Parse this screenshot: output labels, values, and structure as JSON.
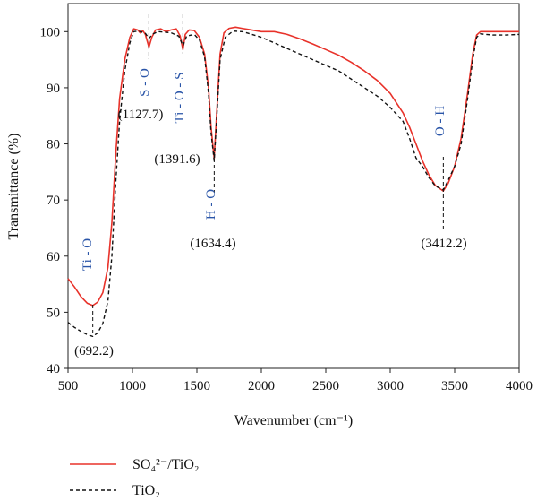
{
  "chart_data": {
    "type": "line",
    "xlabel": "Wavenumber (cm⁻¹)",
    "ylabel": "Transmittance (%)",
    "xlim": [
      500,
      4000
    ],
    "ylim": [
      40,
      105
    ],
    "x_ticks": [
      500,
      1000,
      1500,
      2000,
      2500,
      3000,
      3500,
      4000
    ],
    "y_ticks": [
      40,
      50,
      60,
      70,
      80,
      90,
      100
    ],
    "grid": false,
    "legend_position": "bottom-left",
    "series": [
      {
        "name": "SO₄²⁻/TiO₂",
        "color": "#e8322a",
        "dash": "solid",
        "points": [
          [
            500,
            56
          ],
          [
            550,
            54.5
          ],
          [
            600,
            52.8
          ],
          [
            650,
            51.6
          ],
          [
            692,
            51.2
          ],
          [
            730,
            51.8
          ],
          [
            770,
            53.5
          ],
          [
            810,
            58
          ],
          [
            840,
            66
          ],
          [
            870,
            78
          ],
          [
            900,
            88
          ],
          [
            940,
            95
          ],
          [
            980,
            99
          ],
          [
            1010,
            100.5
          ],
          [
            1040,
            100.3
          ],
          [
            1060,
            99.8
          ],
          [
            1080,
            100.2
          ],
          [
            1100,
            99.5
          ],
          [
            1128,
            97.2
          ],
          [
            1150,
            99
          ],
          [
            1180,
            100.3
          ],
          [
            1220,
            100.5
          ],
          [
            1260,
            100
          ],
          [
            1300,
            100.3
          ],
          [
            1340,
            100.5
          ],
          [
            1370,
            99.2
          ],
          [
            1392,
            96.8
          ],
          [
            1410,
            99.5
          ],
          [
            1440,
            100.3
          ],
          [
            1480,
            100.2
          ],
          [
            1520,
            99
          ],
          [
            1560,
            96
          ],
          [
            1590,
            90
          ],
          [
            1610,
            83
          ],
          [
            1634,
            77.4
          ],
          [
            1655,
            86
          ],
          [
            1680,
            96
          ],
          [
            1710,
            99.8
          ],
          [
            1750,
            100.6
          ],
          [
            1800,
            100.8
          ],
          [
            1850,
            100.6
          ],
          [
            1900,
            100.4
          ],
          [
            2000,
            100
          ],
          [
            2100,
            100
          ],
          [
            2200,
            99.5
          ],
          [
            2300,
            98.7
          ],
          [
            2400,
            97.8
          ],
          [
            2500,
            96.8
          ],
          [
            2600,
            95.8
          ],
          [
            2700,
            94.5
          ],
          [
            2800,
            93
          ],
          [
            2900,
            91.3
          ],
          [
            3000,
            89
          ],
          [
            3100,
            85.5
          ],
          [
            3150,
            83
          ],
          [
            3200,
            80
          ],
          [
            3250,
            77
          ],
          [
            3300,
            74.5
          ],
          [
            3350,
            72.6
          ],
          [
            3412,
            71.6
          ],
          [
            3450,
            73
          ],
          [
            3500,
            76
          ],
          [
            3550,
            81
          ],
          [
            3600,
            89
          ],
          [
            3640,
            96
          ],
          [
            3670,
            99.4
          ],
          [
            3700,
            100
          ],
          [
            3800,
            100
          ],
          [
            3900,
            100
          ],
          [
            4000,
            100
          ]
        ]
      },
      {
        "name": "TiO₂",
        "color": "#111111",
        "dash": "dashed",
        "points": [
          [
            500,
            48.2
          ],
          [
            550,
            47.3
          ],
          [
            600,
            46.6
          ],
          [
            650,
            46
          ],
          [
            692,
            45.7
          ],
          [
            730,
            46.3
          ],
          [
            770,
            48
          ],
          [
            810,
            52
          ],
          [
            840,
            60
          ],
          [
            870,
            73
          ],
          [
            900,
            84
          ],
          [
            940,
            93
          ],
          [
            980,
            98
          ],
          [
            1010,
            100
          ],
          [
            1050,
            100.1
          ],
          [
            1100,
            99.7
          ],
          [
            1128,
            98.8
          ],
          [
            1160,
            99.6
          ],
          [
            1200,
            100
          ],
          [
            1300,
            99.8
          ],
          [
            1360,
            99.2
          ],
          [
            1392,
            97.5
          ],
          [
            1420,
            99.2
          ],
          [
            1480,
            99.5
          ],
          [
            1520,
            98.5
          ],
          [
            1560,
            95.5
          ],
          [
            1590,
            89
          ],
          [
            1610,
            82
          ],
          [
            1634,
            77
          ],
          [
            1655,
            85
          ],
          [
            1680,
            95
          ],
          [
            1720,
            99
          ],
          [
            1780,
            100.1
          ],
          [
            1850,
            100
          ],
          [
            1900,
            99.7
          ],
          [
            2000,
            99
          ],
          [
            2100,
            98
          ],
          [
            2200,
            97
          ],
          [
            2300,
            96
          ],
          [
            2400,
            95
          ],
          [
            2500,
            94
          ],
          [
            2600,
            93
          ],
          [
            2700,
            91.5
          ],
          [
            2800,
            90
          ],
          [
            2900,
            88.5
          ],
          [
            3000,
            86.5
          ],
          [
            3100,
            84
          ],
          [
            3150,
            81
          ],
          [
            3200,
            77.5
          ],
          [
            3250,
            76
          ],
          [
            3300,
            74
          ],
          [
            3350,
            72.5
          ],
          [
            3412,
            71.8
          ],
          [
            3450,
            73.5
          ],
          [
            3500,
            76
          ],
          [
            3550,
            80
          ],
          [
            3600,
            88
          ],
          [
            3640,
            95
          ],
          [
            3670,
            99
          ],
          [
            3700,
            99.6
          ],
          [
            3800,
            99.4
          ],
          [
            3900,
            99.4
          ],
          [
            4000,
            99.5
          ]
        ]
      }
    ],
    "annotations": [
      {
        "bond": "Ti - O",
        "peak": "(692.2)",
        "x": 692.2
      },
      {
        "bond": "S - O",
        "peak": "(1127.7)",
        "x": 1127.7
      },
      {
        "bond": "Ti - O - S",
        "peak": "(1391.6)",
        "x": 1391.6
      },
      {
        "bond": "H - O",
        "peak": "(1634.4)",
        "x": 1634.4
      },
      {
        "bond": "O - H",
        "peak": "(3412.2)",
        "x": 3412.2
      }
    ]
  },
  "legend": {
    "items": [
      {
        "label": "SO₄²⁻/TiO₂",
        "color": "#e8322a",
        "dash": "solid"
      },
      {
        "label": "TiO₂",
        "color": "#111111",
        "dash": "dashed"
      }
    ]
  }
}
